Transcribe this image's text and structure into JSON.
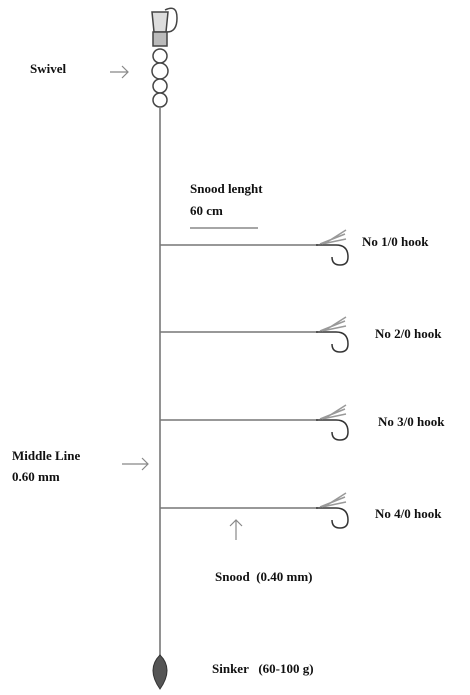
{
  "swivel": {
    "label": "Swivel"
  },
  "snood_length": {
    "label": "Snood lenght",
    "value": "60 cm"
  },
  "hooks": [
    "No 1/0 hook",
    "No 2/0 hook",
    "No 3/0 hook",
    "No 4/0 hook"
  ],
  "middle_line": {
    "label": "Middle Line",
    "value": "0.60 mm"
  },
  "snood": {
    "label": "Snood  (0.40 mm)"
  },
  "sinker": {
    "label": "Sinker   (60-100 g)"
  }
}
